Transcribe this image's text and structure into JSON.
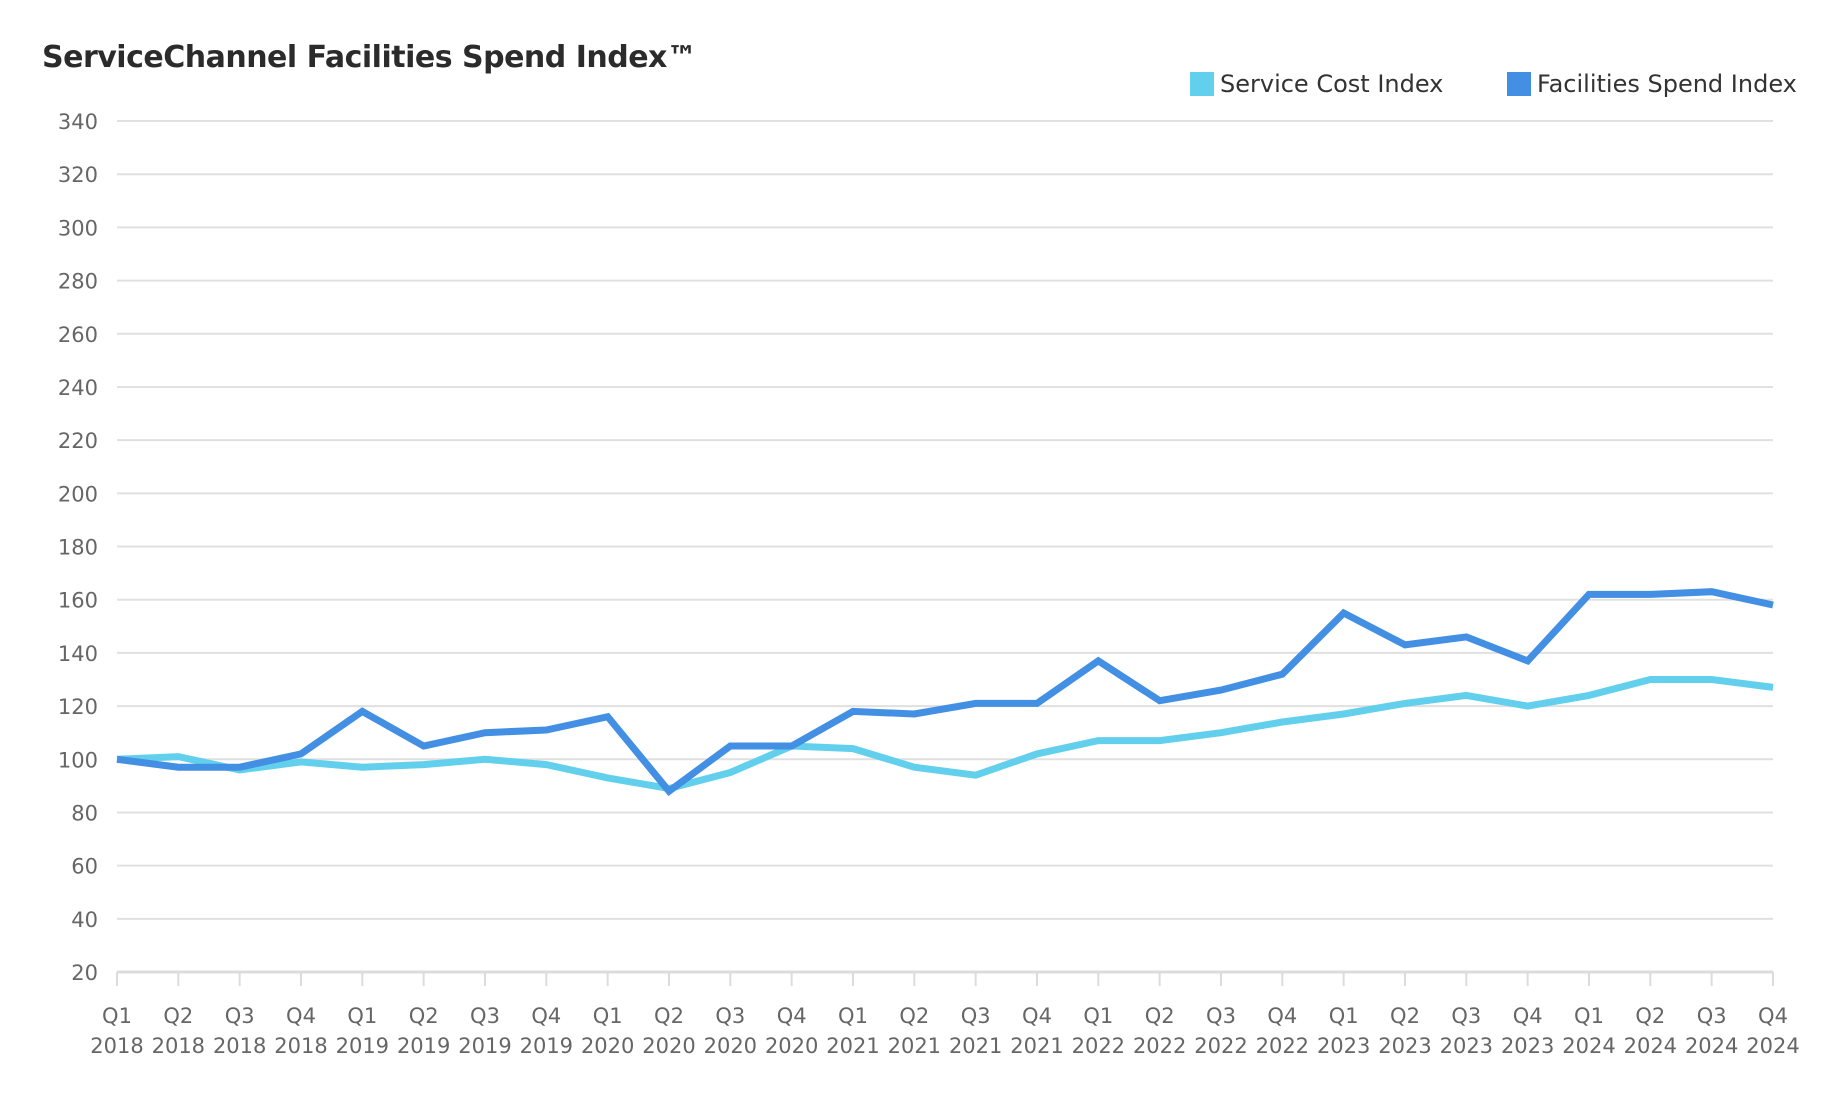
{
  "chart_data": {
    "type": "line",
    "title": "ServiceChannel Facilities Spend Index™",
    "xlabel": "",
    "ylabel": "",
    "ylim": [
      20,
      340
    ],
    "yticks": [
      20,
      40,
      60,
      80,
      100,
      120,
      140,
      160,
      180,
      200,
      220,
      240,
      260,
      280,
      300,
      320,
      340
    ],
    "grid": true,
    "legend_position": "top-right",
    "categories": [
      [
        "Q1",
        "2018"
      ],
      [
        "Q2",
        "2018"
      ],
      [
        "Q3",
        "2018"
      ],
      [
        "Q4",
        "2018"
      ],
      [
        "Q1",
        "2019"
      ],
      [
        "Q2",
        "2019"
      ],
      [
        "Q3",
        "2019"
      ],
      [
        "Q4",
        "2019"
      ],
      [
        "Q1",
        "2020"
      ],
      [
        "Q2",
        "2020"
      ],
      [
        "Q3",
        "2020"
      ],
      [
        "Q4",
        "2020"
      ],
      [
        "Q1",
        "2021"
      ],
      [
        "Q2",
        "2021"
      ],
      [
        "Q3",
        "2021"
      ],
      [
        "Q4",
        "2021"
      ],
      [
        "Q1",
        "2022"
      ],
      [
        "Q2",
        "2022"
      ],
      [
        "Q3",
        "2022"
      ],
      [
        "Q4",
        "2022"
      ],
      [
        "Q1",
        "2023"
      ],
      [
        "Q2",
        "2023"
      ],
      [
        "Q3",
        "2023"
      ],
      [
        "Q4",
        "2023"
      ],
      [
        "Q1",
        "2024"
      ],
      [
        "Q2",
        "2024"
      ],
      [
        "Q3",
        "2024"
      ],
      [
        "Q4",
        "2024"
      ]
    ],
    "series": [
      {
        "name": "Service Cost Index",
        "color": "#62d0ec",
        "values": [
          100,
          101,
          96,
          99,
          97,
          98,
          100,
          98,
          93,
          89,
          95,
          105,
          104,
          97,
          94,
          102,
          107,
          107,
          110,
          114,
          117,
          121,
          124,
          120,
          124,
          130,
          130,
          127
        ]
      },
      {
        "name": "Facilities Spend Index",
        "color": "#428fe3",
        "values": [
          100,
          97,
          97,
          102,
          118,
          105,
          110,
          111,
          116,
          88,
          105,
          105,
          118,
          117,
          121,
          121,
          137,
          122,
          126,
          132,
          155,
          143,
          146,
          137,
          162,
          162,
          163,
          158
        ]
      }
    ]
  }
}
